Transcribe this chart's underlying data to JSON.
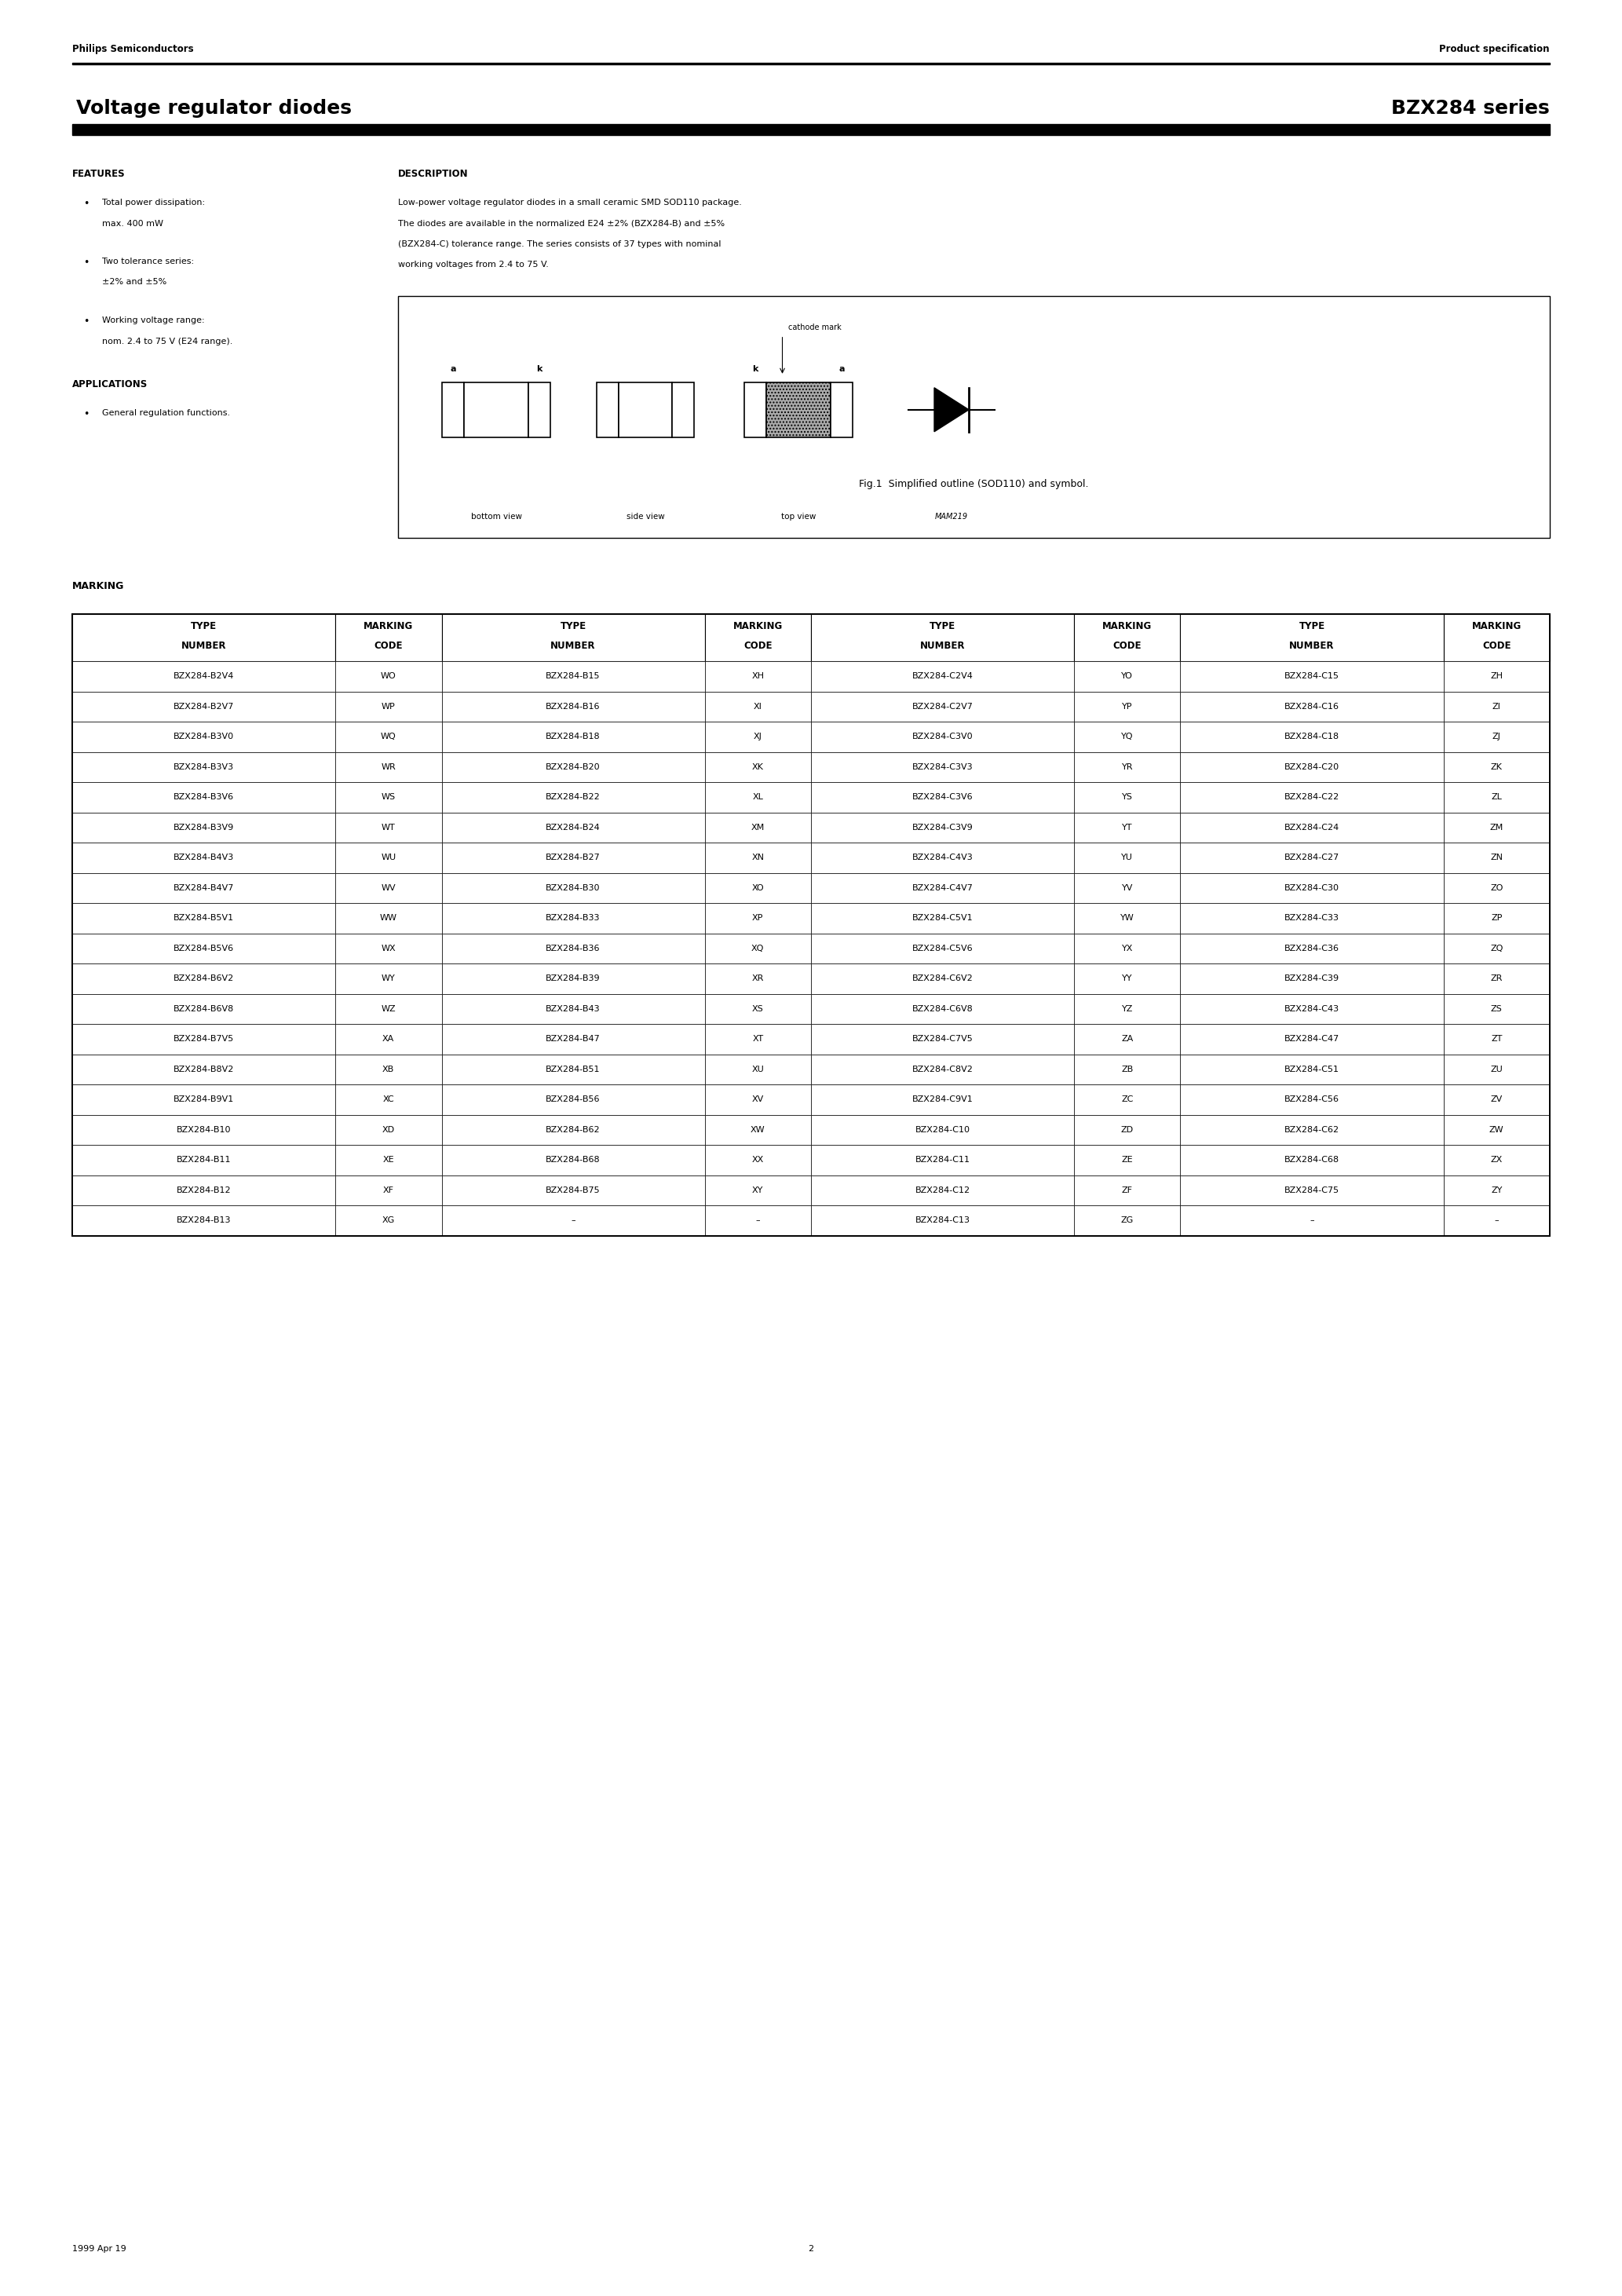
{
  "page_width": 20.66,
  "page_height": 29.24,
  "background_color": "#ffffff",
  "header_left": "Philips Semiconductors",
  "header_right": "Product specification",
  "title_left": "Voltage regulator diodes",
  "title_right": "BZX284 series",
  "header_bar_color": "#000000",
  "title_bar_color": "#000000",
  "features_title": "FEATURES",
  "features_bullets": [
    [
      "Total power dissipation:",
      "max. 400 mW"
    ],
    [
      "Two tolerance series:",
      "±2% and ±5%"
    ],
    [
      "Working voltage range:",
      "nom. 2.4 to 75 V (E24 range)."
    ]
  ],
  "applications_title": "APPLICATIONS",
  "applications_bullets": [
    [
      "General regulation functions."
    ]
  ],
  "description_title": "DESCRIPTION",
  "description_lines": [
    "Low-power voltage regulator diodes in a small ceramic SMD SOD110 package.",
    "The diodes are available in the normalized E24 ±2% (BZX284-B) and ±5%",
    "(BZX284-C) tolerance range. The series consists of 37 types with nominal",
    "working voltages from 2.4 to 75 V."
  ],
  "fig_caption": "Fig.1  Simplified outline (SOD110) and symbol.",
  "marking_title": "MARKING",
  "table_headers": [
    "TYPE\nNUMBER",
    "MARKING\nCODE",
    "TYPE\nNUMBER",
    "MARKING\nCODE",
    "TYPE\nNUMBER",
    "MARKING\nCODE",
    "TYPE\nNUMBER",
    "MARKING\nCODE"
  ],
  "table_data": [
    [
      "BZX284-B2V4",
      "WO",
      "BZX284-B15",
      "XH",
      "BZX284-C2V4",
      "YO",
      "BZX284-C15",
      "ZH"
    ],
    [
      "BZX284-B2V7",
      "WP",
      "BZX284-B16",
      "XI",
      "BZX284-C2V7",
      "YP",
      "BZX284-C16",
      "ZI"
    ],
    [
      "BZX284-B3V0",
      "WQ",
      "BZX284-B18",
      "XJ",
      "BZX284-C3V0",
      "YQ",
      "BZX284-C18",
      "ZJ"
    ],
    [
      "BZX284-B3V3",
      "WR",
      "BZX284-B20",
      "XK",
      "BZX284-C3V3",
      "YR",
      "BZX284-C20",
      "ZK"
    ],
    [
      "BZX284-B3V6",
      "WS",
      "BZX284-B22",
      "XL",
      "BZX284-C3V6",
      "YS",
      "BZX284-C22",
      "ZL"
    ],
    [
      "BZX284-B3V9",
      "WT",
      "BZX284-B24",
      "XM",
      "BZX284-C3V9",
      "YT",
      "BZX284-C24",
      "ZM"
    ],
    [
      "BZX284-B4V3",
      "WU",
      "BZX284-B27",
      "XN",
      "BZX284-C4V3",
      "YU",
      "BZX284-C27",
      "ZN"
    ],
    [
      "BZX284-B4V7",
      "WV",
      "BZX284-B30",
      "XO",
      "BZX284-C4V7",
      "YV",
      "BZX284-C30",
      "ZO"
    ],
    [
      "BZX284-B5V1",
      "WW",
      "BZX284-B33",
      "XP",
      "BZX284-C5V1",
      "YW",
      "BZX284-C33",
      "ZP"
    ],
    [
      "BZX284-B5V6",
      "WX",
      "BZX284-B36",
      "XQ",
      "BZX284-C5V6",
      "YX",
      "BZX284-C36",
      "ZQ"
    ],
    [
      "BZX284-B6V2",
      "WY",
      "BZX284-B39",
      "XR",
      "BZX284-C6V2",
      "YY",
      "BZX284-C39",
      "ZR"
    ],
    [
      "BZX284-B6V8",
      "WZ",
      "BZX284-B43",
      "XS",
      "BZX284-C6V8",
      "YZ",
      "BZX284-C43",
      "ZS"
    ],
    [
      "BZX284-B7V5",
      "XA",
      "BZX284-B47",
      "XT",
      "BZX284-C7V5",
      "ZA",
      "BZX284-C47",
      "ZT"
    ],
    [
      "BZX284-B8V2",
      "XB",
      "BZX284-B51",
      "XU",
      "BZX284-C8V2",
      "ZB",
      "BZX284-C51",
      "ZU"
    ],
    [
      "BZX284-B9V1",
      "XC",
      "BZX284-B56",
      "XV",
      "BZX284-C9V1",
      "ZC",
      "BZX284-C56",
      "ZV"
    ],
    [
      "BZX284-B10",
      "XD",
      "BZX284-B62",
      "XW",
      "BZX284-C10",
      "ZD",
      "BZX284-C62",
      "ZW"
    ],
    [
      "BZX284-B11",
      "XE",
      "BZX284-B68",
      "XX",
      "BZX284-C11",
      "ZE",
      "BZX284-C68",
      "ZX"
    ],
    [
      "BZX284-B12",
      "XF",
      "BZX284-B75",
      "XY",
      "BZX284-C12",
      "ZF",
      "BZX284-C75",
      "ZY"
    ],
    [
      "BZX284-B13",
      "XG",
      "–",
      "–",
      "BZX284-C13",
      "ZG",
      "–",
      "–"
    ]
  ],
  "footer_left": "1999 Apr 19",
  "footer_center": "2",
  "font_color": "#000000",
  "table_border_color": "#000000"
}
